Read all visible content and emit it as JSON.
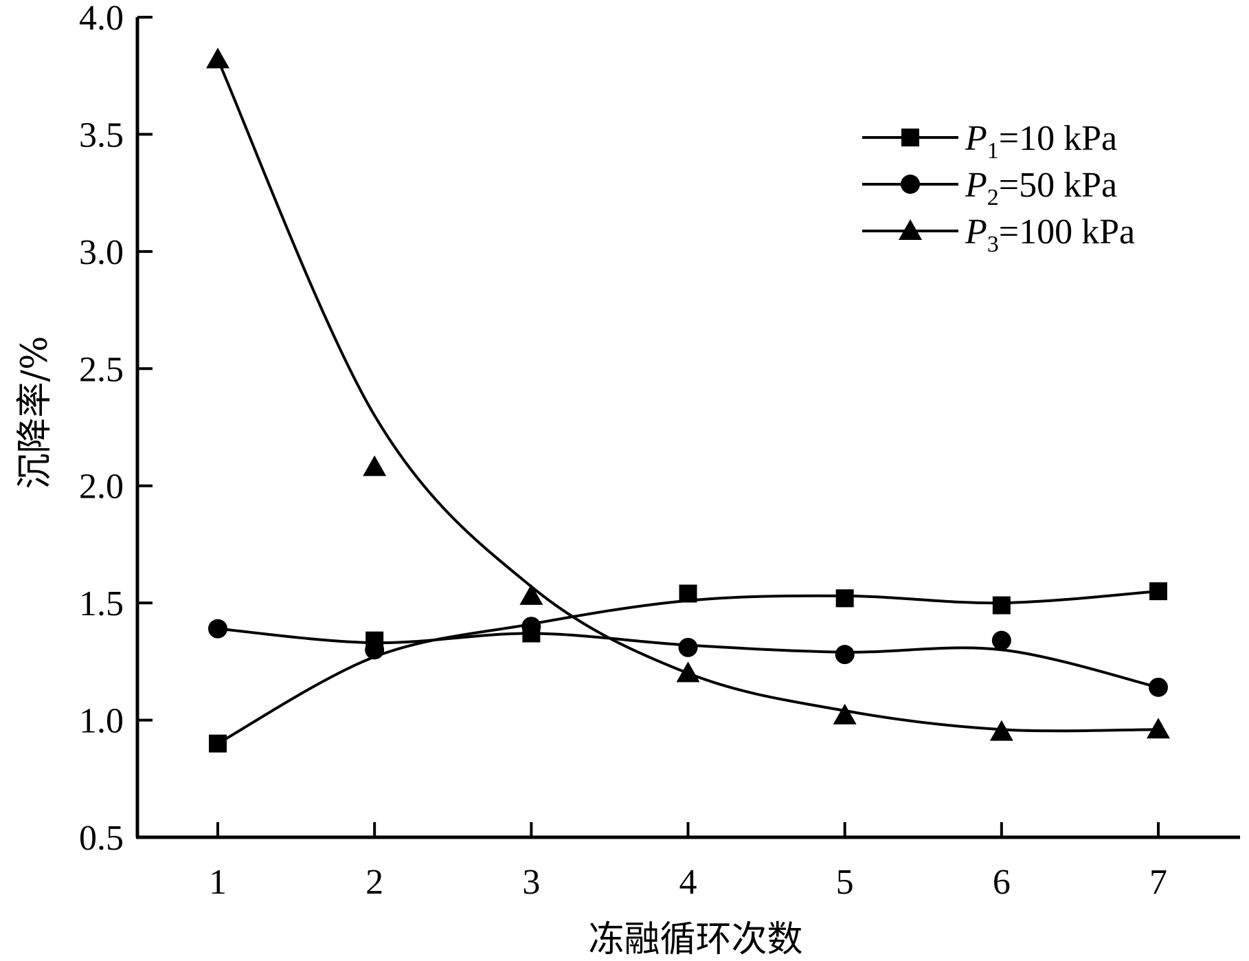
{
  "chart_data": {
    "type": "line",
    "xlabel": "冻融循环次数",
    "ylabel": "沉降率/%",
    "x": [
      1,
      2,
      3,
      4,
      5,
      6,
      7
    ],
    "xlim": [
      0.5,
      7.5
    ],
    "ylim": [
      0.5,
      4.0
    ],
    "xticks": [
      "1",
      "2",
      "3",
      "4",
      "5",
      "6",
      "7"
    ],
    "yticks": [
      "0.5",
      "1.0",
      "1.5",
      "2.0",
      "2.5",
      "3.0",
      "3.5",
      "4.0"
    ],
    "legend_position": "top-right",
    "grid": false,
    "series": [
      {
        "name": "P1=10 kPa",
        "symbol": "P",
        "subscript": "1",
        "value_text": "=10 kPa",
        "marker": "square",
        "values": [
          0.9,
          1.34,
          1.37,
          1.54,
          1.52,
          1.49,
          1.55
        ],
        "fit": [
          0.9,
          1.27,
          1.41,
          1.51,
          1.53,
          1.5,
          1.55
        ]
      },
      {
        "name": "P2=50 kPa",
        "symbol": "P",
        "subscript": "2",
        "value_text": "=50 kPa",
        "marker": "circle",
        "values": [
          1.39,
          1.3,
          1.4,
          1.31,
          1.28,
          1.34,
          1.14
        ],
        "fit": [
          1.39,
          1.33,
          1.37,
          1.32,
          1.29,
          1.3,
          1.14
        ]
      },
      {
        "name": "P3=100 kPa",
        "symbol": "P",
        "subscript": "3",
        "value_text": "=100 kPa",
        "marker": "triangle",
        "values": [
          3.82,
          2.08,
          1.53,
          1.2,
          1.02,
          0.95,
          0.96
        ],
        "fit": [
          3.82,
          2.3,
          1.57,
          1.2,
          1.04,
          0.96,
          0.96
        ]
      }
    ]
  }
}
